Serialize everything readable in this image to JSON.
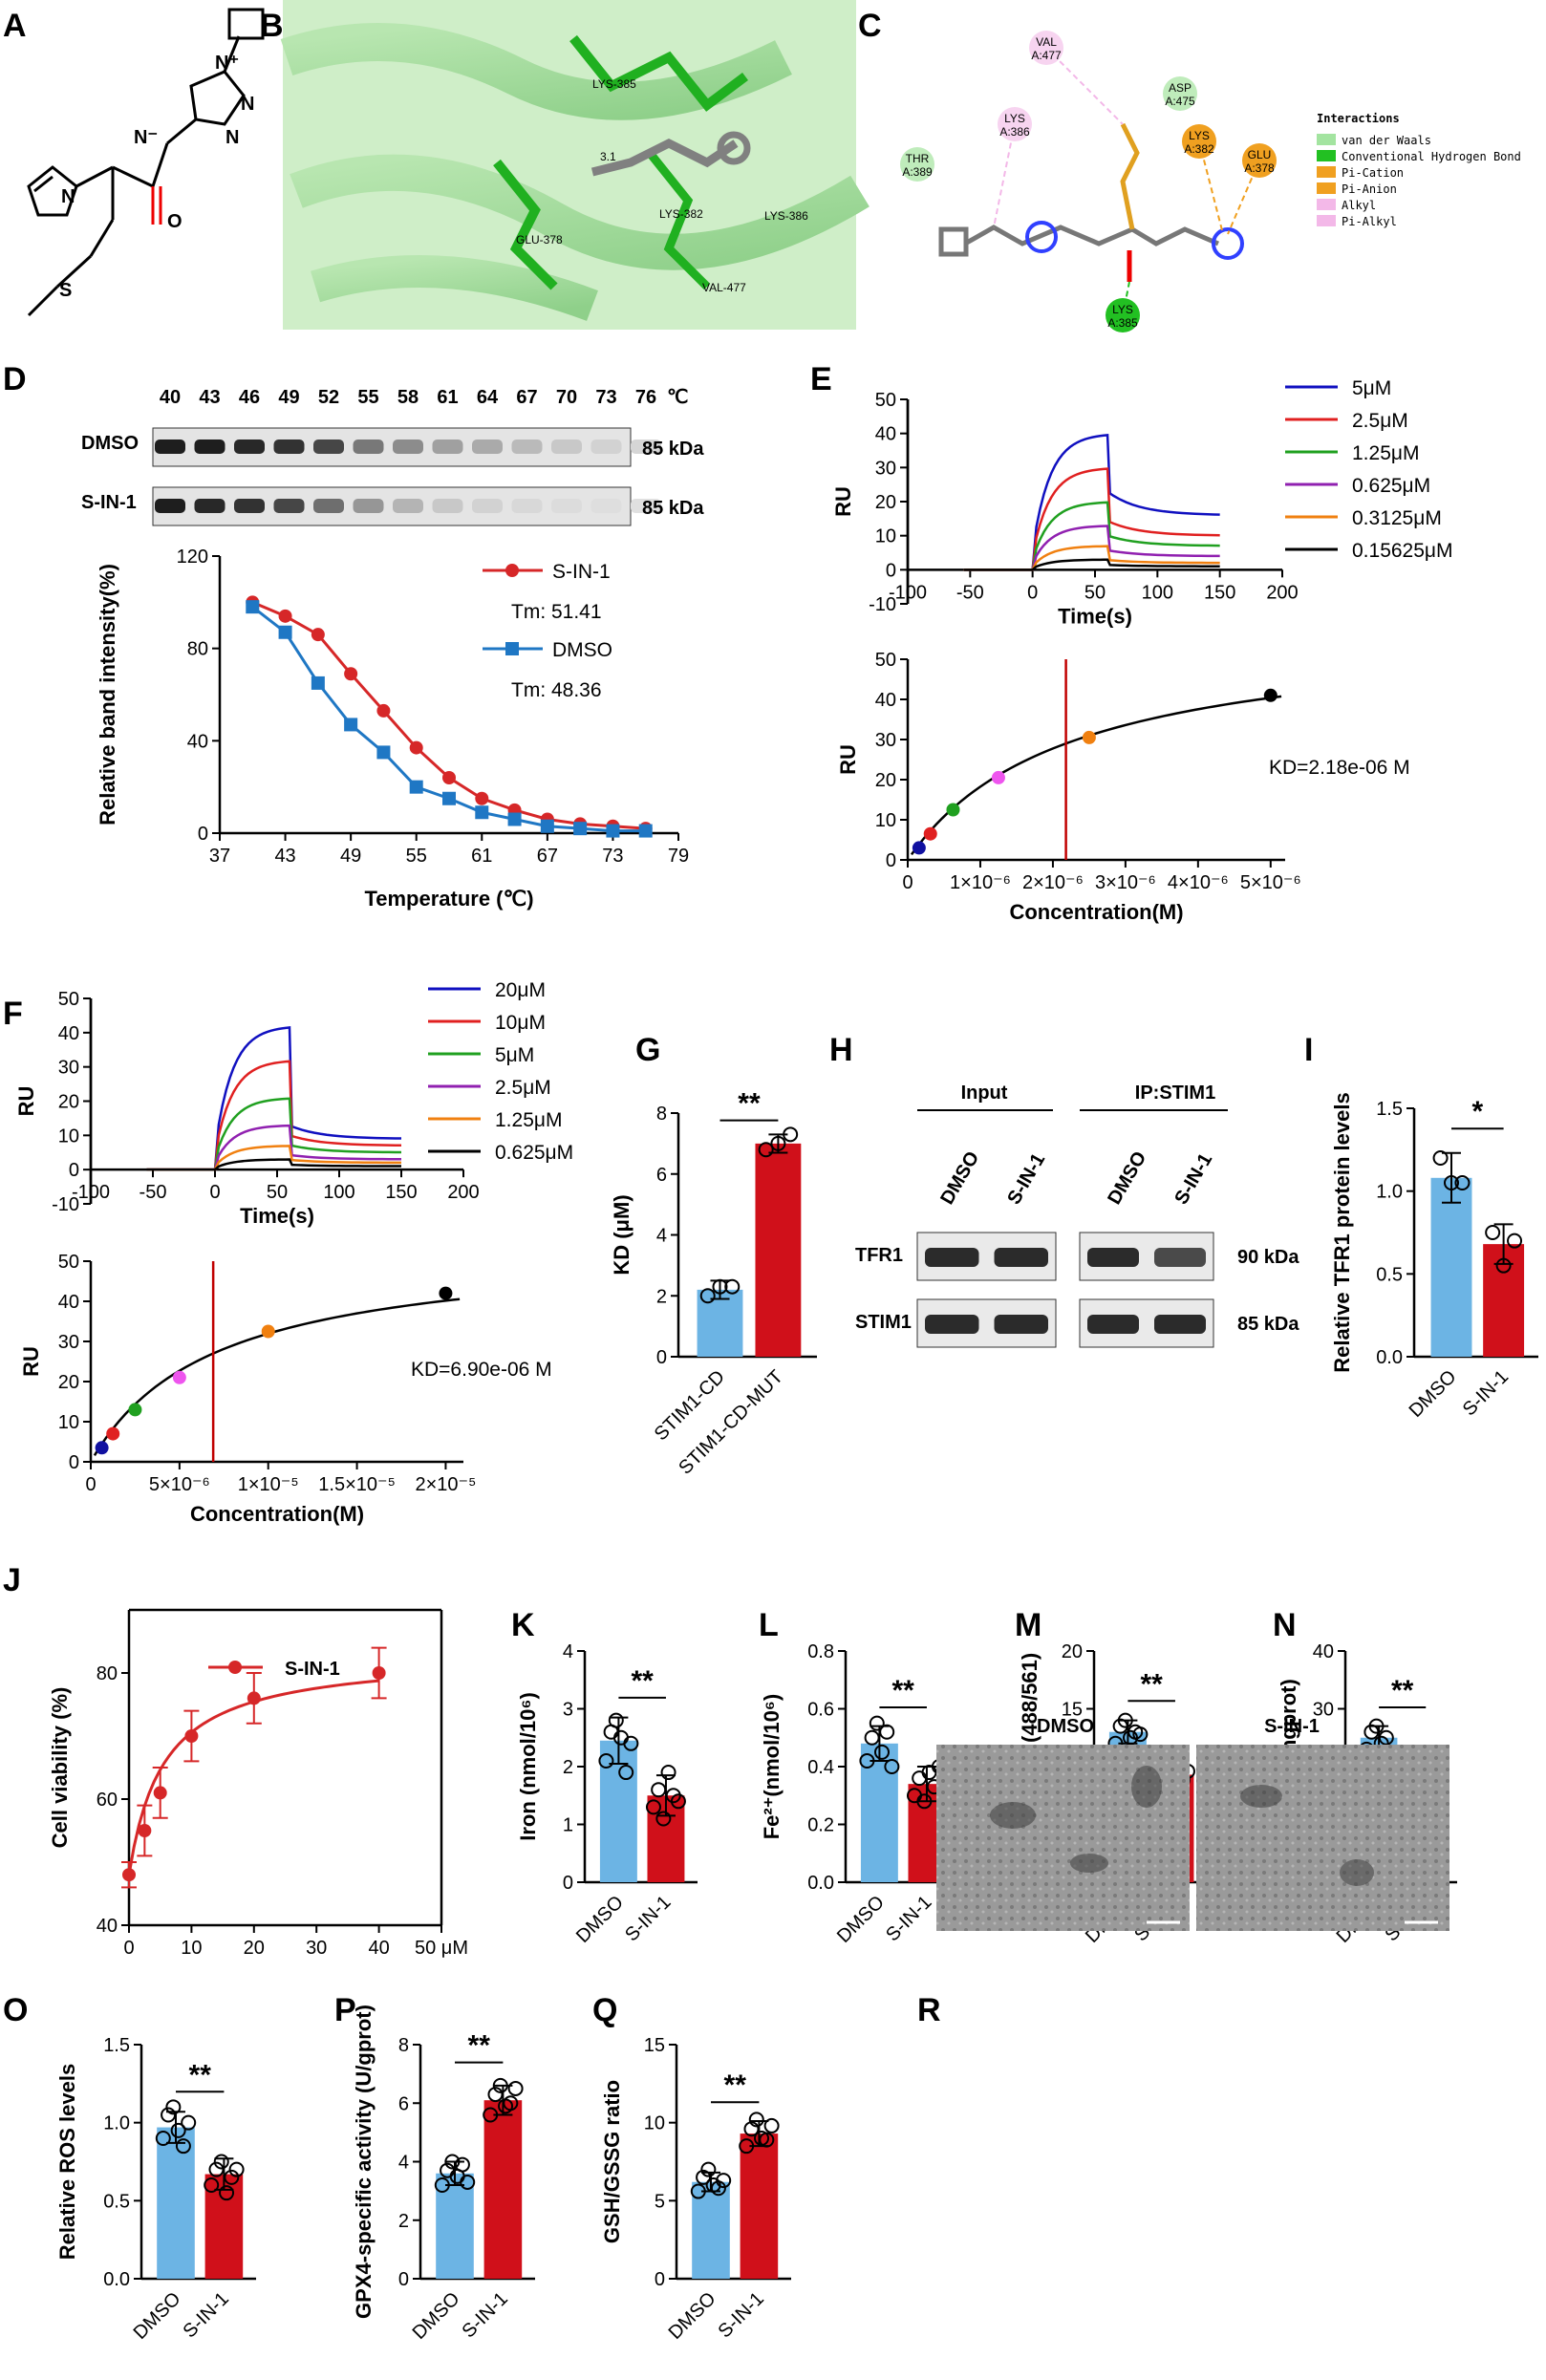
{
  "figure": {
    "panel_labels": [
      "A",
      "B",
      "C",
      "D",
      "E",
      "F",
      "G",
      "H",
      "I",
      "J",
      "K",
      "L",
      "M",
      "N",
      "O",
      "P",
      "Q",
      "R"
    ],
    "colors": {
      "blue": "#6cb4e4",
      "red": "#d0101a",
      "dark_red": "#c00000",
      "line_red": "#d62728",
      "line_blue": "#1f77c4"
    }
  },
  "panel_b": {
    "residues": [
      "LYS-385",
      "3.1",
      "GLU-378",
      "LYS-382",
      "LYS-386",
      "VAL-477"
    ]
  },
  "panel_c": {
    "residues": [
      {
        "name": "VAL",
        "chain": "A:477",
        "kind": "pink"
      },
      {
        "name": "ASP",
        "chain": "A:475",
        "kind": "green"
      },
      {
        "name": "LYS",
        "chain": "A:386",
        "kind": "pink"
      },
      {
        "name": "THR",
        "chain": "A:389",
        "kind": "green"
      },
      {
        "name": "LYS",
        "chain": "A:382",
        "kind": "orange"
      },
      {
        "name": "GLU",
        "chain": "A:378",
        "kind": "orange"
      },
      {
        "name": "LYS",
        "chain": "A:385",
        "kind": "dgreen"
      }
    ],
    "legend_title": "Interactions",
    "legend": [
      {
        "label": "van der Waals",
        "color": "#a3e4a0"
      },
      {
        "label": "Conventional Hydrogen Bond",
        "color": "#22c022"
      },
      {
        "label": "Pi-Cation",
        "color": "#f0a020"
      },
      {
        "label": "Pi-Anion",
        "color": "#f0a020"
      },
      {
        "label": "Alkyl",
        "color": "#f3b8e8"
      },
      {
        "label": "Pi-Alkyl",
        "color": "#f3b8e8"
      }
    ]
  },
  "panel_d": {
    "temps": [
      "40",
      "43",
      "46",
      "49",
      "52",
      "55",
      "58",
      "61",
      "64",
      "67",
      "70",
      "73",
      "76"
    ],
    "temp_unit": "℃",
    "blot_rows": [
      "DMSO",
      "S-IN-1"
    ],
    "kda": [
      "85 kDa",
      "85 kDa"
    ]
  },
  "panel_h": {
    "group_labels": [
      "Input",
      "IP:STIM1"
    ],
    "lanes": [
      "DMSO",
      "S-IN-1",
      "DMSO",
      "S-IN-1"
    ],
    "rows": [
      "TFR1",
      "STIM1"
    ],
    "kda": [
      "90 kDa",
      "85 kDa"
    ]
  },
  "panel_r": {
    "labels": [
      "DMSO",
      "S-IN-1"
    ]
  },
  "chart_data": [
    {
      "id": "D",
      "type": "line",
      "xlabel": "Temperature (℃)",
      "ylabel": "Relative band intensity(%)",
      "xlim": [
        37,
        79
      ],
      "ylim": [
        0,
        120
      ],
      "xticks": [
        37,
        43,
        49,
        55,
        61,
        67,
        73,
        79
      ],
      "yticks": [
        0,
        40,
        80,
        120
      ],
      "series": [
        {
          "name": "S-IN-1",
          "tm_label": "Tm: 51.41",
          "color": "#d62728",
          "marker": "circle",
          "x": [
            40,
            43,
            46,
            49,
            52,
            55,
            58,
            61,
            64,
            67,
            70,
            73,
            76
          ],
          "y": [
            100,
            94,
            86,
            69,
            53,
            37,
            24,
            15,
            10,
            6,
            4,
            3,
            2
          ]
        },
        {
          "name": "DMSO",
          "tm_label": "Tm: 48.36",
          "color": "#1f77c4",
          "marker": "square",
          "x": [
            40,
            43,
            46,
            49,
            52,
            55,
            58,
            61,
            64,
            67,
            70,
            73,
            76
          ],
          "y": [
            98,
            87,
            65,
            47,
            35,
            20,
            15,
            9,
            6,
            3,
            2,
            1,
            1
          ]
        }
      ]
    },
    {
      "id": "E1",
      "type": "line",
      "xlabel": "Time(s)",
      "ylabel": "RU",
      "xlim": [
        -100,
        200
      ],
      "ylim": [
        -10,
        50
      ],
      "xticks": [
        -100,
        -50,
        0,
        50,
        100,
        150,
        200
      ],
      "yticks": [
        -10,
        0,
        10,
        20,
        30,
        40,
        50
      ],
      "series": [
        {
          "name": "5μM",
          "color": "#1010c0",
          "peak": 40,
          "dissoc": 16
        },
        {
          "name": "2.5μM",
          "color": "#e02020",
          "peak": 30,
          "dissoc": 10
        },
        {
          "name": "1.25μM",
          "color": "#20a020",
          "peak": 20,
          "dissoc": 7
        },
        {
          "name": "0.625μM",
          "color": "#9020b0",
          "peak": 13,
          "dissoc": 4
        },
        {
          "name": "0.3125μM",
          "color": "#f08010",
          "peak": 7,
          "dissoc": 2
        },
        {
          "name": "0.15625μM",
          "color": "#000000",
          "peak": 3,
          "dissoc": 1
        }
      ]
    },
    {
      "id": "E2",
      "type": "scatter",
      "xlabel": "Concentration(M)",
      "ylabel": "RU",
      "xlim": [
        0,
        5.2e-06
      ],
      "ylim": [
        0,
        50
      ],
      "xticks": [
        0,
        1e-06,
        2e-06,
        3e-06,
        4e-06,
        5e-06
      ],
      "xtick_labels": [
        "0",
        "1×10⁻⁶",
        "2×10⁻⁶",
        "3×10⁻⁶",
        "4×10⁻⁶",
        "5×10⁻⁶"
      ],
      "yticks": [
        0,
        10,
        20,
        30,
        40,
        50
      ],
      "kd_label": "KD=2.18e-06 M",
      "kd_value": 2.18e-06,
      "rmax": 58,
      "points": [
        {
          "x": 1.5625e-07,
          "y": 3,
          "color": "#1010a0"
        },
        {
          "x": 3.125e-07,
          "y": 6.5,
          "color": "#e02020"
        },
        {
          "x": 6.25e-07,
          "y": 12.5,
          "color": "#20a020"
        },
        {
          "x": 1.25e-06,
          "y": 20.5,
          "color": "#ee55ee"
        },
        {
          "x": 2.5e-06,
          "y": 30.5,
          "color": "#f08010"
        },
        {
          "x": 5e-06,
          "y": 41,
          "color": "#000000"
        }
      ]
    },
    {
      "id": "F1",
      "type": "line",
      "xlabel": "Time(s)",
      "ylabel": "RU",
      "xlim": [
        -100,
        200
      ],
      "ylim": [
        -10,
        50
      ],
      "xticks": [
        -100,
        -50,
        0,
        50,
        100,
        150,
        200
      ],
      "yticks": [
        -10,
        0,
        10,
        20,
        30,
        40,
        50
      ],
      "series": [
        {
          "name": "20μM",
          "color": "#1010c0",
          "peak": 42,
          "dissoc": 9
        },
        {
          "name": "10μM",
          "color": "#e02020",
          "peak": 32,
          "dissoc": 7
        },
        {
          "name": "5μM",
          "color": "#20a020",
          "peak": 21,
          "dissoc": 5
        },
        {
          "name": "2.5μM",
          "color": "#9020b0",
          "peak": 13,
          "dissoc": 3
        },
        {
          "name": "1.25μM",
          "color": "#f08010",
          "peak": 7,
          "dissoc": 2
        },
        {
          "name": "0.625μM",
          "color": "#000000",
          "peak": 3,
          "dissoc": 1
        }
      ]
    },
    {
      "id": "F2",
      "type": "scatter",
      "xlabel": "Concentration(M)",
      "ylabel": "RU",
      "xlim": [
        0,
        2.1e-05
      ],
      "ylim": [
        0,
        50
      ],
      "xticks": [
        0,
        5e-06,
        1e-05,
        1.5e-05,
        2e-05
      ],
      "xtick_labels": [
        "0",
        "5×10⁻⁶",
        "1×10⁻⁵",
        "1.5×10⁻⁵",
        "2×10⁻⁵"
      ],
      "yticks": [
        0,
        10,
        20,
        30,
        40,
        50
      ],
      "kd_label": "KD=6.90e-06 M",
      "kd_value": 6.9e-06,
      "rmax": 54,
      "points": [
        {
          "x": 6.25e-07,
          "y": 3.5,
          "color": "#1010a0"
        },
        {
          "x": 1.25e-06,
          "y": 7,
          "color": "#e02020"
        },
        {
          "x": 2.5e-06,
          "y": 13,
          "color": "#20a020"
        },
        {
          "x": 5e-06,
          "y": 21,
          "color": "#ee55ee"
        },
        {
          "x": 1e-05,
          "y": 32.5,
          "color": "#f08010"
        },
        {
          "x": 2e-05,
          "y": 42,
          "color": "#000000"
        }
      ]
    },
    {
      "id": "G",
      "type": "bar",
      "ylabel": "KD (μM)",
      "ylim": [
        0,
        8
      ],
      "yticks": [
        0,
        2,
        4,
        6,
        8
      ],
      "sig": "**",
      "categories": [
        "STIM1-CD",
        "STIM1-CD-MUT"
      ],
      "values": [
        2.2,
        7.0
      ],
      "errors": [
        0.3,
        0.3
      ],
      "points": [
        [
          2.0,
          2.3,
          2.3
        ],
        [
          6.8,
          7.0,
          7.3
        ]
      ]
    },
    {
      "id": "I",
      "type": "bar",
      "ylabel": "Relative TFR1 protein levels",
      "ylim": [
        0,
        1.5
      ],
      "yticks": [
        0,
        0.5,
        1.0,
        1.5
      ],
      "sig": "*",
      "categories": [
        "DMSO",
        "S-IN-1"
      ],
      "values": [
        1.08,
        0.68
      ],
      "errors": [
        0.15,
        0.12
      ],
      "points": [
        [
          1.2,
          1.05,
          1.05
        ],
        [
          0.75,
          0.55,
          0.7
        ]
      ]
    },
    {
      "id": "J",
      "type": "line",
      "ylabel": "Cell viability (%)",
      "xlim": [
        0,
        50
      ],
      "ylim": [
        40,
        90
      ],
      "xticks": [
        0,
        10,
        20,
        30,
        40,
        50
      ],
      "xtick_labels": [
        "0",
        "10",
        "20",
        "30",
        "40",
        "50 μM"
      ],
      "yticks": [
        40,
        60,
        80
      ],
      "series_name": "S-IN-1",
      "x": [
        0,
        2.5,
        5,
        10,
        20,
        40
      ],
      "y": [
        48,
        55,
        61,
        70,
        76,
        80
      ],
      "errors": [
        2,
        4,
        4,
        4,
        4,
        4
      ]
    },
    {
      "id": "K",
      "type": "bar",
      "ylabel": "Iron (nmol/10⁶)",
      "ylim": [
        0,
        4
      ],
      "yticks": [
        0,
        1,
        2,
        3,
        4
      ],
      "sig": "**",
      "categories": [
        "DMSO",
        "S-IN-1"
      ],
      "values": [
        2.45,
        1.5
      ],
      "errors": [
        0.4,
        0.35
      ],
      "points": [
        [
          2.1,
          2.6,
          2.8,
          2.5,
          1.9,
          2.4
        ],
        [
          1.3,
          1.6,
          1.1,
          1.9,
          1.5,
          1.4
        ]
      ]
    },
    {
      "id": "L",
      "type": "bar",
      "ylabel": "Fe²⁺(nmol/10⁶)",
      "ylim": [
        0,
        0.8
      ],
      "yticks": [
        0,
        0.2,
        0.4,
        0.6,
        0.8
      ],
      "sig": "**",
      "categories": [
        "DMSO",
        "S-IN-1"
      ],
      "values": [
        0.48,
        0.34
      ],
      "errors": [
        0.06,
        0.06
      ],
      "points": [
        [
          0.42,
          0.5,
          0.55,
          0.45,
          0.52,
          0.4
        ],
        [
          0.3,
          0.36,
          0.28,
          0.38,
          0.33,
          0.4
        ]
      ]
    },
    {
      "id": "M",
      "type": "bar",
      "ylabel": "Relative ratio (488/561)",
      "ylim": [
        0,
        20
      ],
      "yticks": [
        0,
        5,
        10,
        15,
        20
      ],
      "sig": "**",
      "categories": [
        "DMSO",
        "S-IN-1"
      ],
      "values": [
        13,
        9.3
      ],
      "errors": [
        1,
        1
      ],
      "points": [
        [
          12,
          13.5,
          14,
          12.5,
          13,
          12.8
        ],
        [
          8.5,
          9.5,
          10,
          9,
          8.8,
          9.6
        ]
      ]
    },
    {
      "id": "N",
      "type": "bar",
      "ylabel": "MDA (nM/mgprot)",
      "ylim": [
        0,
        40
      ],
      "yticks": [
        0,
        10,
        20,
        30,
        40
      ],
      "sig": "**",
      "categories": [
        "DMSO",
        "S-IN-1"
      ],
      "values": [
        25,
        18
      ],
      "errors": [
        2,
        2.5
      ],
      "points": [
        [
          23,
          26,
          27,
          24,
          25,
          22
        ],
        [
          15,
          19,
          17,
          20,
          18,
          16
        ]
      ]
    },
    {
      "id": "O",
      "type": "bar",
      "ylabel": "Relative ROS levels",
      "ylim": [
        0,
        1.5
      ],
      "yticks": [
        0,
        0.5,
        1.0,
        1.5
      ],
      "sig": "**",
      "categories": [
        "DMSO",
        "S-IN-1"
      ],
      "values": [
        0.97,
        0.67
      ],
      "errors": [
        0.1,
        0.1
      ],
      "points": [
        [
          0.9,
          1.05,
          1.1,
          0.95,
          0.85,
          1.0
        ],
        [
          0.6,
          0.7,
          0.75,
          0.55,
          0.65,
          0.7
        ]
      ]
    },
    {
      "id": "P",
      "type": "bar",
      "ylabel": "GPX4-specific activity (U/gprot)",
      "ylim": [
        0,
        8
      ],
      "yticks": [
        0,
        2,
        4,
        6,
        8
      ],
      "sig": "**",
      "categories": [
        "DMSO",
        "S-IN-1"
      ],
      "values": [
        3.6,
        6.1
      ],
      "errors": [
        0.4,
        0.5
      ],
      "points": [
        [
          3.2,
          3.7,
          4.0,
          3.5,
          3.9,
          3.3
        ],
        [
          5.6,
          6.3,
          6.6,
          5.9,
          6.0,
          6.5
        ]
      ]
    },
    {
      "id": "Q",
      "type": "bar",
      "ylabel": "GSH/GSSG ratio",
      "ylim": [
        0,
        15
      ],
      "yticks": [
        0,
        5,
        10,
        15
      ],
      "sig": "**",
      "categories": [
        "DMSO",
        "S-IN-1"
      ],
      "values": [
        6.2,
        9.3
      ],
      "errors": [
        0.6,
        0.8
      ],
      "points": [
        [
          5.6,
          6.5,
          7.0,
          6.0,
          5.8,
          6.3
        ],
        [
          8.5,
          9.6,
          10.2,
          9.0,
          8.9,
          9.8
        ]
      ]
    }
  ]
}
